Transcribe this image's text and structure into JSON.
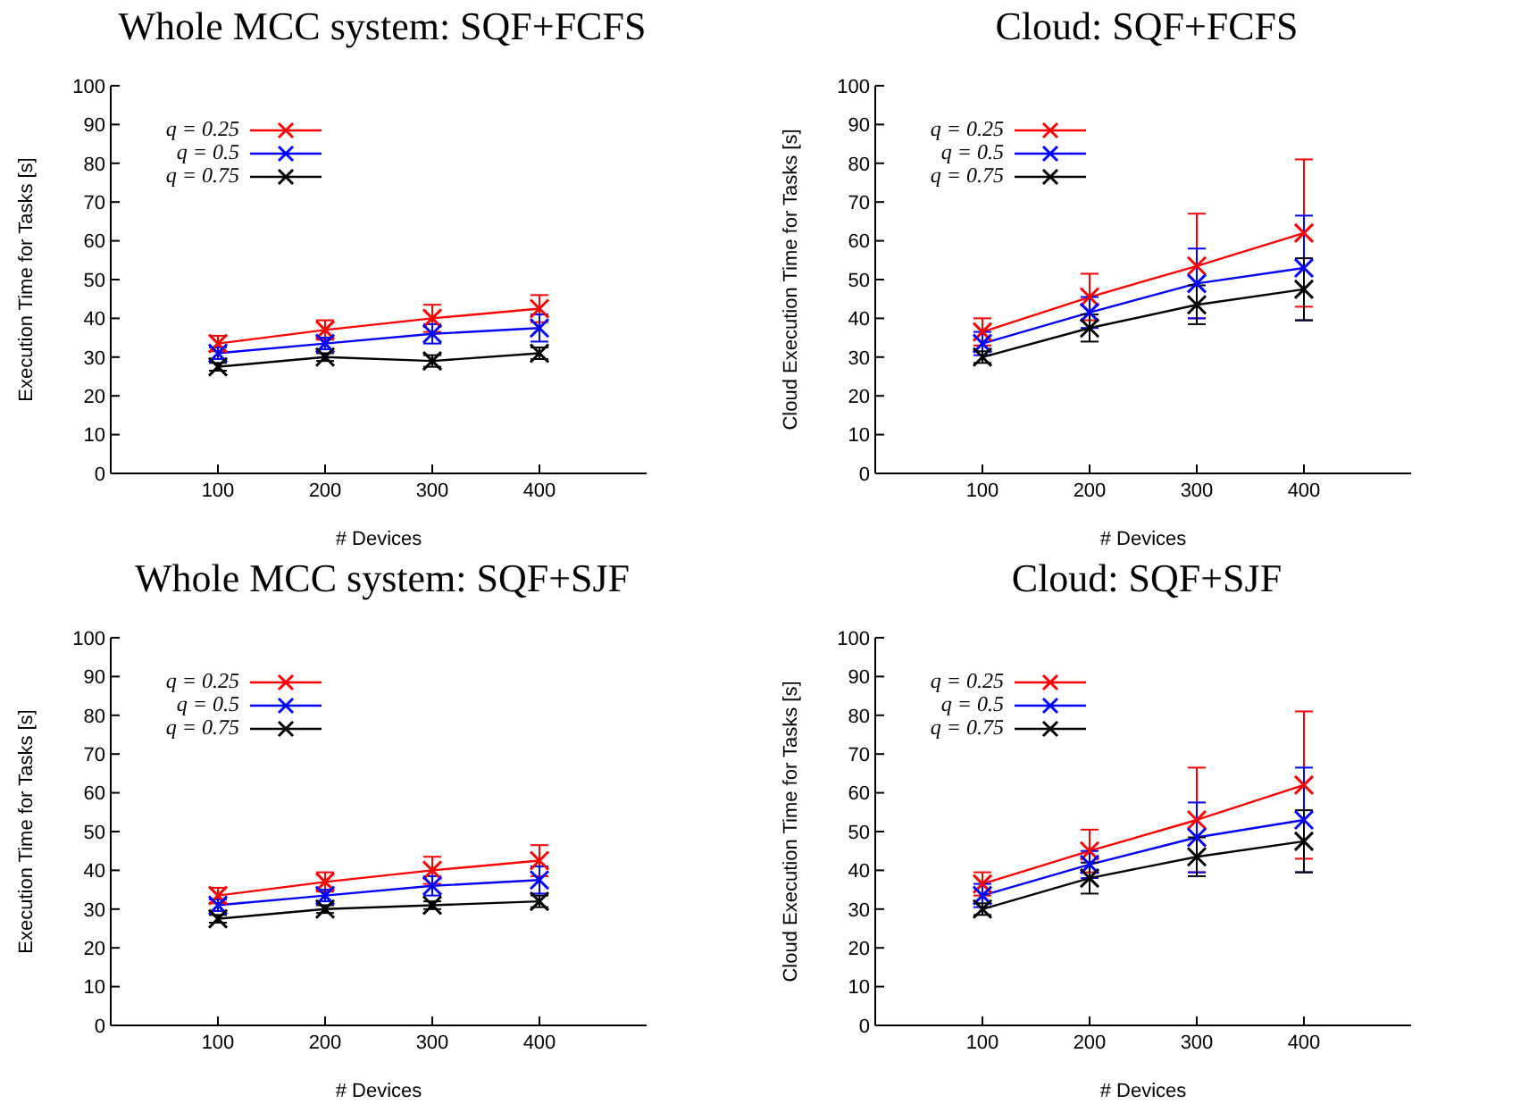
{
  "chart_data": [
    {
      "type": "line",
      "title": "Whole MCC system: SQF+FCFS",
      "xlabel": "# Devices",
      "ylabel": "Execution Time for Tasks [s]",
      "x": [
        100,
        200,
        300,
        400
      ],
      "xlim": [
        0,
        500
      ],
      "xticks": [
        100,
        200,
        300,
        400
      ],
      "ylim": [
        0,
        100
      ],
      "yticks": [
        0,
        10,
        20,
        30,
        40,
        50,
        60,
        70,
        80,
        90,
        100
      ],
      "legend": "top left",
      "grid": false,
      "series": [
        {
          "name": "q = 0.25",
          "color": "#ff0000",
          "marker": "cross",
          "values": [
            33.5,
            37,
            40,
            42.5
          ],
          "errors": [
            2,
            2.5,
            3.5,
            3.5
          ]
        },
        {
          "name": "q = 0.5",
          "color": "#0000ff",
          "marker": "cross",
          "values": [
            31,
            33.5,
            36,
            37.5
          ],
          "errors": [
            1.5,
            1.5,
            2.5,
            3.5
          ]
        },
        {
          "name": "q = 0.75",
          "color": "#000000",
          "marker": "cross",
          "values": [
            27.5,
            30,
            29,
            31
          ],
          "errors": [
            1,
            1,
            1.5,
            1.5
          ]
        }
      ]
    },
    {
      "type": "line",
      "title": "Cloud: SQF+FCFS",
      "xlabel": "# Devices",
      "ylabel": "Cloud Execution Time for Tasks [s]",
      "x": [
        100,
        200,
        300,
        400
      ],
      "xlim": [
        0,
        500
      ],
      "xticks": [
        100,
        200,
        300,
        400
      ],
      "ylim": [
        0,
        100
      ],
      "yticks": [
        0,
        10,
        20,
        30,
        40,
        50,
        60,
        70,
        80,
        90,
        100
      ],
      "legend": "top left",
      "grid": false,
      "series": [
        {
          "name": "q = 0.25",
          "color": "#ff0000",
          "marker": "cross",
          "values": [
            36.5,
            45.5,
            53.5,
            62
          ],
          "errors": [
            3.5,
            6,
            13.5,
            19
          ]
        },
        {
          "name": "q = 0.5",
          "color": "#0000ff",
          "marker": "cross",
          "values": [
            33.5,
            41.5,
            49,
            53
          ],
          "errors": [
            3,
            4,
            9,
            13.5
          ]
        },
        {
          "name": "q = 0.75",
          "color": "#000000",
          "marker": "cross",
          "values": [
            30,
            37.5,
            43.5,
            47.5
          ],
          "errors": [
            1.5,
            3.5,
            5,
            8
          ]
        }
      ]
    },
    {
      "type": "line",
      "title": "Whole MCC system: SQF+SJF",
      "xlabel": "# Devices",
      "ylabel": "Execution Time for Tasks [s]",
      "x": [
        100,
        200,
        300,
        400
      ],
      "xlim": [
        0,
        500
      ],
      "xticks": [
        100,
        200,
        300,
        400
      ],
      "ylim": [
        0,
        100
      ],
      "yticks": [
        0,
        10,
        20,
        30,
        40,
        50,
        60,
        70,
        80,
        90,
        100
      ],
      "legend": "top left",
      "grid": false,
      "series": [
        {
          "name": "q = 0.25",
          "color": "#ff0000",
          "marker": "cross",
          "values": [
            33.5,
            37,
            40,
            42.5
          ],
          "errors": [
            2,
            2.5,
            3.5,
            4
          ]
        },
        {
          "name": "q = 0.5",
          "color": "#0000ff",
          "marker": "cross",
          "values": [
            31,
            33.5,
            36,
            37.5
          ],
          "errors": [
            1.5,
            1.5,
            2.5,
            3.5
          ]
        },
        {
          "name": "q = 0.75",
          "color": "#000000",
          "marker": "cross",
          "values": [
            27.5,
            30,
            31,
            32
          ],
          "errors": [
            1,
            1,
            1,
            1.5
          ]
        }
      ]
    },
    {
      "type": "line",
      "title": "Cloud: SQF+SJF",
      "xlabel": "# Devices",
      "ylabel": "Cloud Execution Time for Tasks [s]",
      "x": [
        100,
        200,
        300,
        400
      ],
      "xlim": [
        0,
        500
      ],
      "xticks": [
        100,
        200,
        300,
        400
      ],
      "ylim": [
        0,
        100
      ],
      "yticks": [
        0,
        10,
        20,
        30,
        40,
        50,
        60,
        70,
        80,
        90,
        100
      ],
      "legend": "top left",
      "grid": false,
      "series": [
        {
          "name": "q = 0.25",
          "color": "#ff0000",
          "marker": "cross",
          "values": [
            36.5,
            45,
            53,
            62
          ],
          "errors": [
            3,
            5.5,
            13.5,
            19
          ]
        },
        {
          "name": "q = 0.5",
          "color": "#0000ff",
          "marker": "cross",
          "values": [
            33.5,
            41.5,
            48.5,
            53
          ],
          "errors": [
            3,
            3.5,
            9,
            13.5
          ]
        },
        {
          "name": "q = 0.75",
          "color": "#000000",
          "marker": "cross",
          "values": [
            30,
            38,
            43.5,
            47.5
          ],
          "errors": [
            1.5,
            4,
            5,
            8
          ]
        }
      ]
    }
  ]
}
